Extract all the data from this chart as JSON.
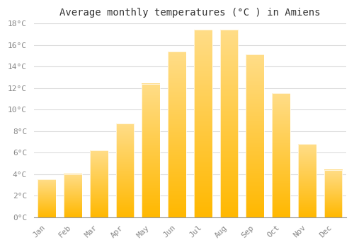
{
  "title": "Average monthly temperatures (°C ) in Amiens",
  "months": [
    "Jan",
    "Feb",
    "Mar",
    "Apr",
    "May",
    "Jun",
    "Jul",
    "Aug",
    "Sep",
    "Oct",
    "Nov",
    "Dec"
  ],
  "values": [
    3.5,
    4.0,
    6.2,
    8.7,
    12.4,
    15.4,
    17.4,
    17.4,
    15.1,
    11.5,
    6.8,
    4.4
  ],
  "bar_color": "#FFA500",
  "bar_color_bottom": "#FFB800",
  "bar_color_top": "#FFDD88",
  "ylim": [
    0,
    18
  ],
  "ytick_step": 2,
  "background_color": "#FFFFFF",
  "grid_color": "#DDDDDD",
  "title_fontsize": 10,
  "tick_fontsize": 8,
  "tick_color": "#888888",
  "font_family": "monospace"
}
